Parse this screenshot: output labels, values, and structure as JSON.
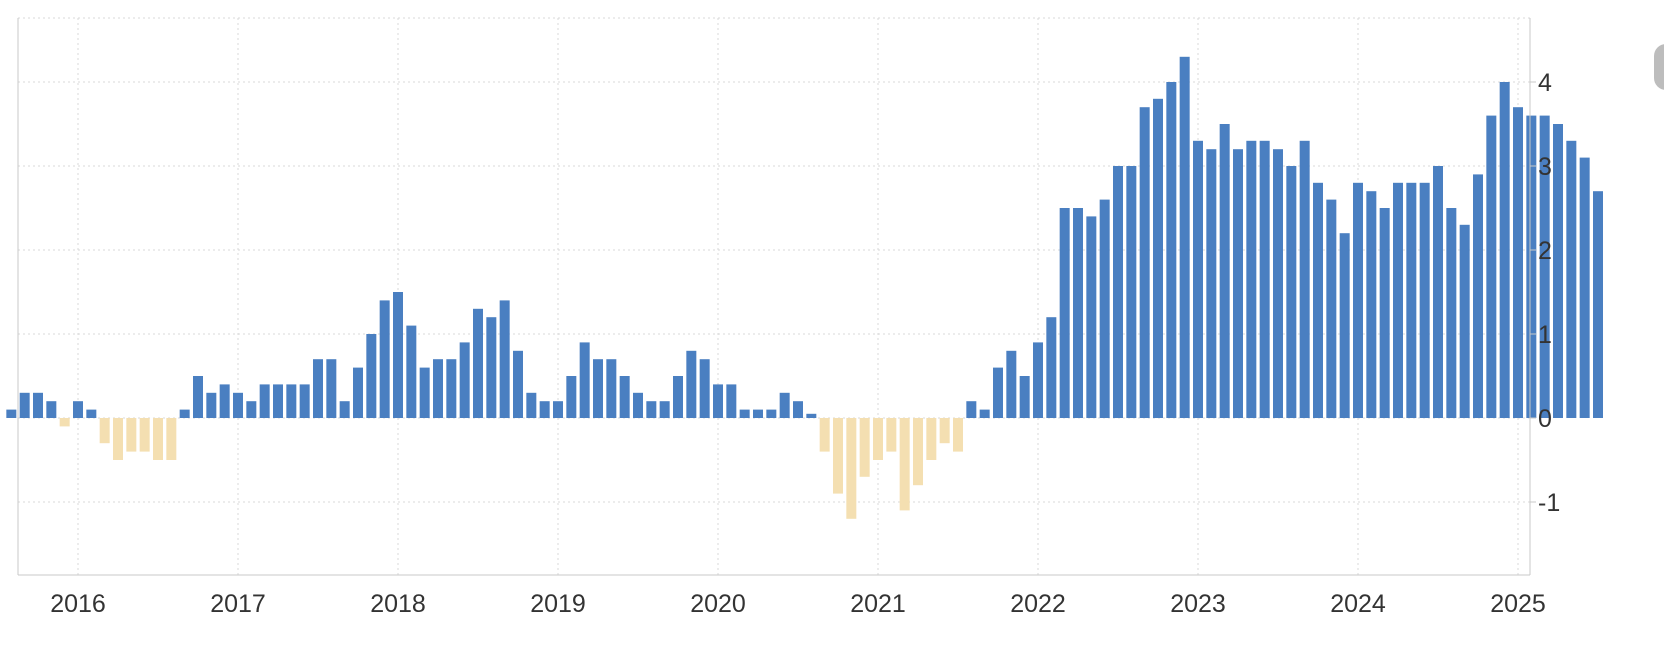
{
  "chart_data": {
    "type": "bar",
    "title": "",
    "xlabel": "",
    "ylabel": "",
    "x_tick_labels": [
      "2016",
      "2017",
      "2018",
      "2019",
      "2020",
      "2021",
      "2022",
      "2023",
      "2024",
      "2025"
    ],
    "y_tick_labels": [
      "4",
      "3",
      "2",
      "1",
      "0",
      "-1"
    ],
    "y_ticks": [
      4,
      3,
      2,
      1,
      0,
      -1
    ],
    "ylim": [
      -2,
      5
    ],
    "grid": true,
    "legend": "none",
    "colors": {
      "positive": "#4a7fc1",
      "negative": "#f4dfb1",
      "grid": "#d9d9d9",
      "axis": "#c8c8c8"
    },
    "start": "2015-08",
    "frequency": "monthly",
    "values": [
      0.1,
      0.3,
      0.3,
      0.2,
      -0.1,
      0.2,
      0.1,
      -0.3,
      -0.5,
      -0.4,
      -0.4,
      -0.5,
      -0.5,
      0.1,
      0.5,
      0.3,
      0.4,
      0.3,
      0.2,
      0.4,
      0.4,
      0.4,
      0.4,
      0.7,
      0.7,
      0.2,
      0.6,
      1.0,
      1.4,
      1.5,
      1.1,
      0.6,
      0.7,
      0.7,
      0.9,
      1.3,
      1.2,
      1.4,
      0.8,
      0.3,
      0.2,
      0.2,
      0.5,
      0.9,
      0.7,
      0.7,
      0.5,
      0.3,
      0.2,
      0.2,
      0.5,
      0.8,
      0.7,
      0.4,
      0.4,
      0.1,
      0.1,
      0.1,
      0.3,
      0.2,
      0.05,
      -0.4,
      -0.9,
      -1.2,
      -0.7,
      -0.5,
      -0.4,
      -1.1,
      -0.8,
      -0.5,
      -0.3,
      -0.4,
      0.2,
      0.1,
      0.6,
      0.8,
      0.5,
      0.9,
      1.2,
      2.5,
      2.5,
      2.4,
      2.6,
      3.0,
      3.0,
      3.7,
      3.8,
      4.0,
      4.3,
      3.3,
      3.2,
      3.5,
      3.2,
      3.3,
      3.3,
      3.2,
      3.0,
      3.3,
      2.8,
      2.6,
      2.2,
      2.8,
      2.7,
      2.5,
      2.8,
      2.8,
      2.8,
      3.0,
      2.5,
      2.3,
      2.9,
      3.6,
      4.0,
      3.7,
      3.6,
      3.6,
      3.5,
      3.3,
      3.1,
      2.7
    ]
  }
}
